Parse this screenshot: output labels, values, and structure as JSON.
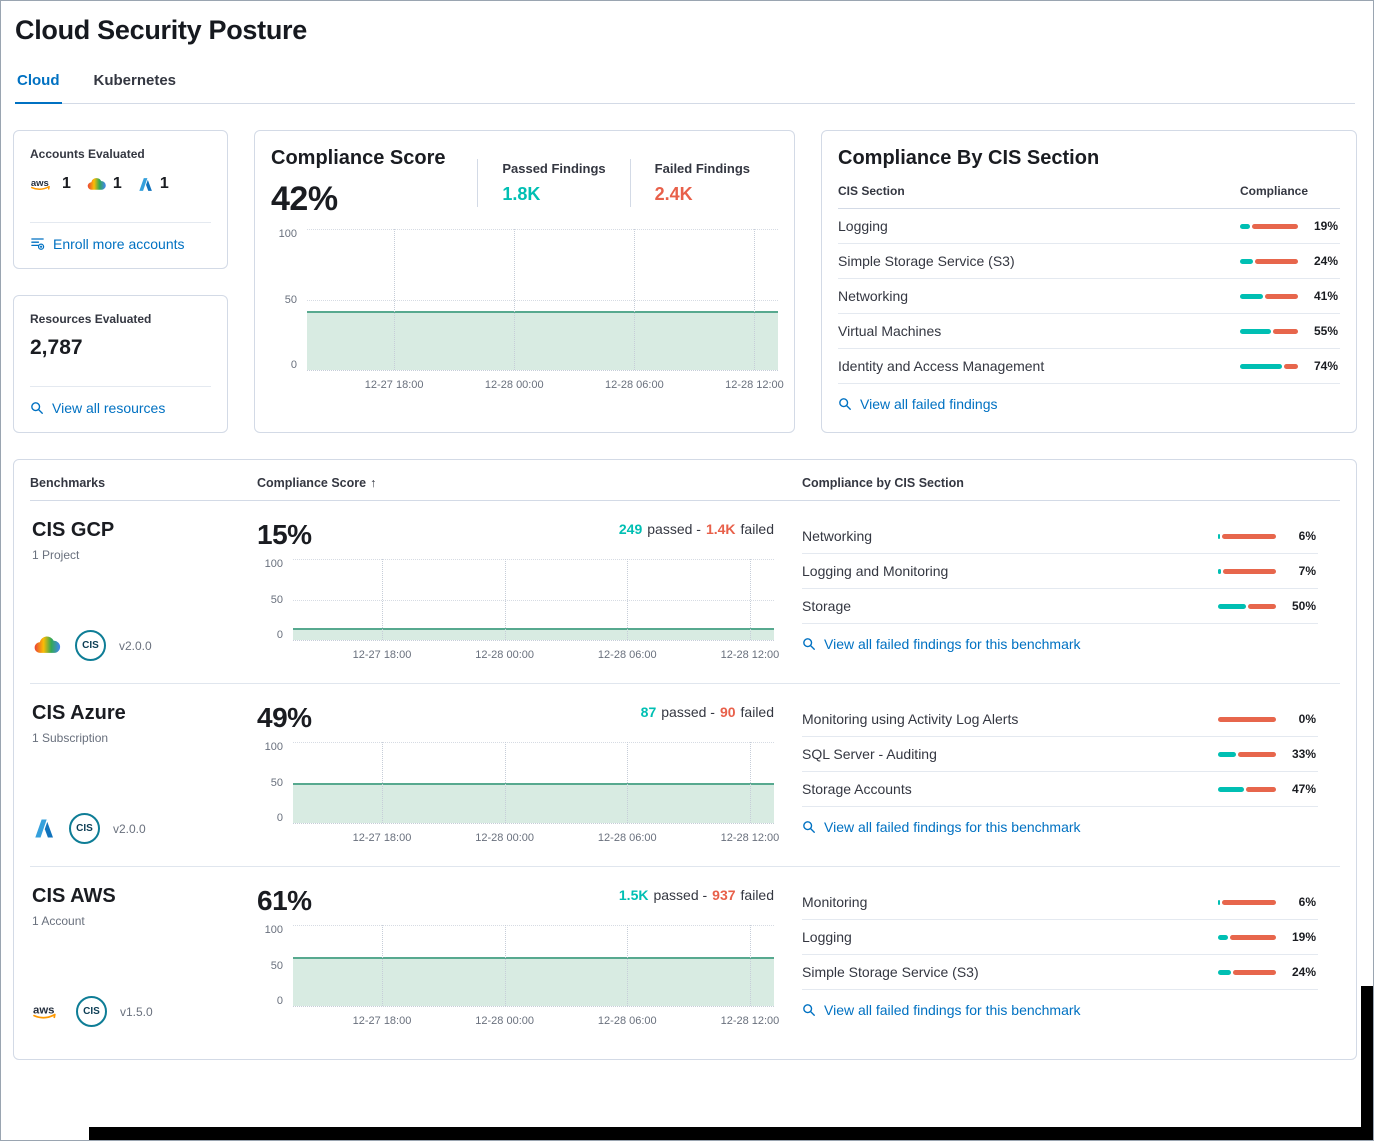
{
  "colors": {
    "link_blue": "#0071c2",
    "passed_teal": "#00bfb3",
    "failed_red": "#e7664c",
    "area_line": "#57a98f",
    "area_fill": "#d8ebe2"
  },
  "header": {
    "title": "Cloud Security Posture",
    "tabs": [
      {
        "label": "Cloud",
        "active": true
      },
      {
        "label": "Kubernetes",
        "active": false
      }
    ]
  },
  "accounts_card": {
    "title": "Accounts Evaluated",
    "providers": [
      {
        "name": "AWS",
        "count": "1"
      },
      {
        "name": "GCP",
        "count": "1"
      },
      {
        "name": "Azure",
        "count": "1"
      }
    ],
    "enroll_link": "Enroll more accounts"
  },
  "resources_card": {
    "title": "Resources Evaluated",
    "value": "2,787",
    "link": "View all resources"
  },
  "score_card": {
    "title": "Compliance Score",
    "score": "42%",
    "passed_label": "Passed Findings",
    "passed_value": "1.8K",
    "failed_label": "Failed Findings",
    "failed_value": "2.4K"
  },
  "chart": {
    "type": "area",
    "score_pct": 42,
    "y_ticks": [
      "100",
      "50",
      "0"
    ],
    "x_ticks": [
      "12-27 18:00",
      "12-28 00:00",
      "12-28 06:00",
      "12-28 12:00"
    ]
  },
  "cis_card": {
    "title": "Compliance By CIS Section",
    "section_col": "CIS Section",
    "compliance_col": "Compliance",
    "rows": [
      {
        "label": "Logging",
        "pct": 19,
        "pct_label": "19%"
      },
      {
        "label": "Simple Storage Service (S3)",
        "pct": 24,
        "pct_label": "24%"
      },
      {
        "label": "Networking",
        "pct": 41,
        "pct_label": "41%"
      },
      {
        "label": "Virtual Machines",
        "pct": 55,
        "pct_label": "55%"
      },
      {
        "label": "Identity and Access Management",
        "pct": 74,
        "pct_label": "74%"
      }
    ],
    "link": "View all failed findings"
  },
  "benchmarks": {
    "col_benchmarks": "Benchmarks",
    "col_score": "Compliance Score",
    "sort_icon": "↑",
    "col_sections": "Compliance by CIS Section",
    "passed_word": "passed -",
    "failed_word": "failed",
    "link": "View all failed findings for this benchmark",
    "rows": [
      {
        "name": "CIS GCP",
        "subtitle": "1 Project",
        "provider": "GCP",
        "version": "v2.0.0",
        "score": "15%",
        "score_pct": 15,
        "passed_value": "249",
        "failed_value": "1.4K",
        "sections": [
          {
            "label": "Networking",
            "pct": 6,
            "pct_label": "6%"
          },
          {
            "label": "Logging and Monitoring",
            "pct": 7,
            "pct_label": "7%"
          },
          {
            "label": "Storage",
            "pct": 50,
            "pct_label": "50%"
          }
        ]
      },
      {
        "name": "CIS Azure",
        "subtitle": "1 Subscription",
        "provider": "Azure",
        "version": "v2.0.0",
        "score": "49%",
        "score_pct": 49,
        "passed_value": "87",
        "failed_value": "90",
        "sections": [
          {
            "label": "Monitoring using Activity Log Alerts",
            "pct": 0,
            "pct_label": "0%"
          },
          {
            "label": "SQL Server - Auditing",
            "pct": 33,
            "pct_label": "33%"
          },
          {
            "label": "Storage Accounts",
            "pct": 47,
            "pct_label": "47%"
          }
        ]
      },
      {
        "name": "CIS AWS",
        "subtitle": "1 Account",
        "provider": "AWS",
        "version": "v1.5.0",
        "score": "61%",
        "score_pct": 61,
        "passed_value": "1.5K",
        "failed_value": "937",
        "sections": [
          {
            "label": "Monitoring",
            "pct": 6,
            "pct_label": "6%"
          },
          {
            "label": "Logging",
            "pct": 19,
            "pct_label": "19%"
          },
          {
            "label": "Simple Storage Service (S3)",
            "pct": 24,
            "pct_label": "24%"
          }
        ]
      }
    ]
  },
  "cis_logo_text": "CIS"
}
